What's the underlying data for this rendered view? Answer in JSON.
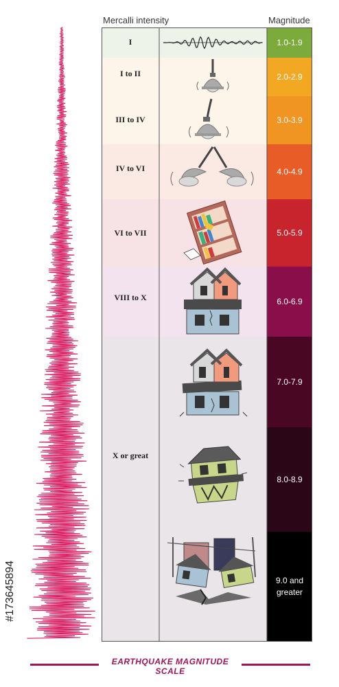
{
  "headers": {
    "intensity": "Mercalli intensity",
    "magnitude": "Magnitude"
  },
  "rows": [
    {
      "intensity": "I",
      "magnitude": "1.0-1.9",
      "icon": "seismograph-wave-icon",
      "band_color": "#eef3ea",
      "mag_color": "#7cab3c"
    },
    {
      "intensity": "I to II",
      "magnitude": "2.0-2.9",
      "icon": "hanging-lamp-icon",
      "band_color": "#fdf4ea",
      "mag_color": "#f2a823"
    },
    {
      "intensity": "III to IV",
      "magnitude": "3.0-3.9",
      "icon": "swinging-lamp-icon",
      "band_color": "#fdf4ea",
      "mag_color": "#f09422"
    },
    {
      "intensity": "IV to VI",
      "magnitude": "4.0-4.9",
      "icon": "two-swinging-lamps-icon",
      "band_color": "#fbe9e3",
      "mag_color": "#e85c28"
    },
    {
      "intensity": "VI to VII",
      "magnitude": "5.0-5.9",
      "icon": "falling-bookshelf-icon",
      "band_color": "#f7e3e5",
      "mag_color": "#c8242e"
    },
    {
      "intensity": "VIII to X",
      "magnitude": "6.0-6.9",
      "icon": "cracked-house-icon",
      "band_color": "#f3e3ee",
      "mag_color": "#8a0e4a"
    },
    {
      "intensity": "X or great",
      "magnitude": "7.0-7.9",
      "icon": "damaged-house-icon",
      "band_color": "#e9e5e9",
      "mag_color": "#4a0724"
    },
    {
      "intensity": "",
      "magnitude": "8.0-8.9",
      "icon": "collapsing-house-icon",
      "band_color": "#e9e5e9",
      "mag_color": "#2a0616"
    },
    {
      "intensity": "",
      "magnitude": "9.0 and greater",
      "icon": "destroyed-city-icon",
      "band_color": "#e9e5e9",
      "mag_color": "#000000"
    }
  ],
  "footer": {
    "title": "EARTHQUAKE MAGNITUDE SCALE"
  },
  "stock_id": "#173645894",
  "colors": {
    "accent": "#a0155a",
    "seismogram": "#d81b60"
  }
}
